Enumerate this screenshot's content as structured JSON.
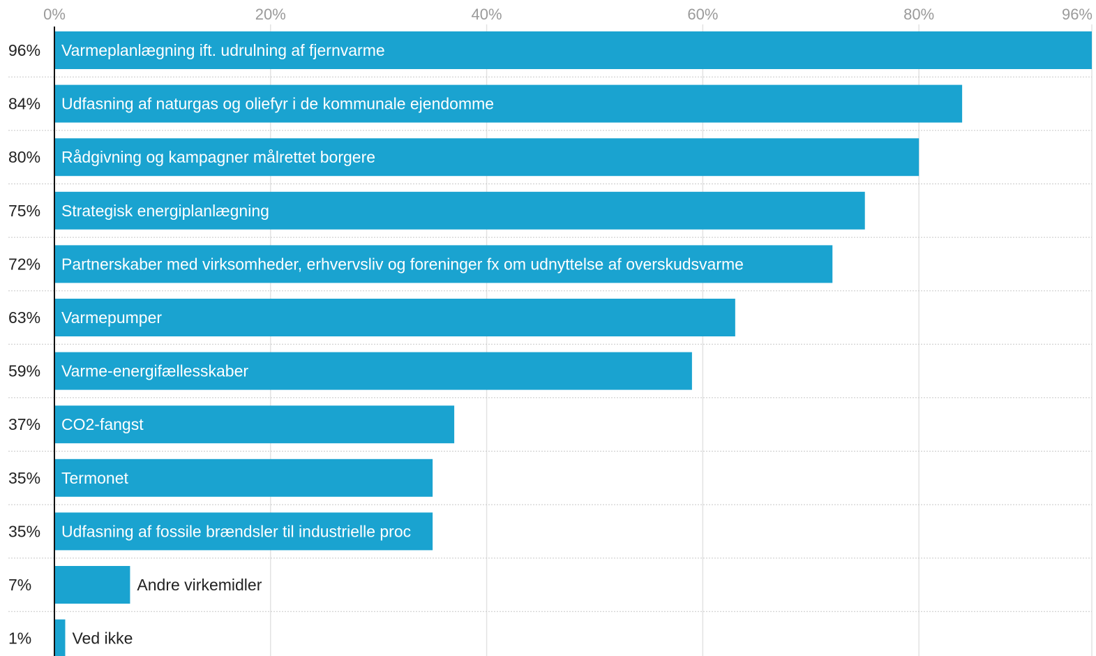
{
  "chart_data": {
    "type": "bar",
    "orientation": "horizontal",
    "categories": [
      "Varmeplanlægning ift. udrulning af fjernvarme",
      "Udfasning af naturgas og oliefyr i de kommunale ejendomme",
      "Rådgivning og kampagner målrettet borgere",
      "Strategisk energiplanlægning",
      "Partnerskaber med virksomheder, erhvervsliv og foreninger fx om udnyttelse af overskudsvarme",
      "Varmepumper",
      "Varme-energifællesskaber",
      "CO2-fangst",
      "Termonet",
      "Udfasning af fossile brændsler til industrielle proc",
      "Andre virkemidler",
      "Ved ikke"
    ],
    "values": [
      96,
      84,
      80,
      75,
      72,
      63,
      59,
      37,
      35,
      35,
      7,
      1
    ],
    "value_labels": [
      "96%",
      "84%",
      "80%",
      "75%",
      "72%",
      "63%",
      "59%",
      "37%",
      "35%",
      "35%",
      "7%",
      "1%"
    ],
    "x_ticks": [
      0,
      20,
      40,
      60,
      80,
      96
    ],
    "x_tick_labels": [
      "0%",
      "20%",
      "40%",
      "60%",
      "80%",
      "96%"
    ],
    "xlim": [
      0,
      96
    ],
    "title": "",
    "xlabel": "",
    "ylabel": "",
    "grid": true,
    "bar_color": "#1aa3d0"
  }
}
